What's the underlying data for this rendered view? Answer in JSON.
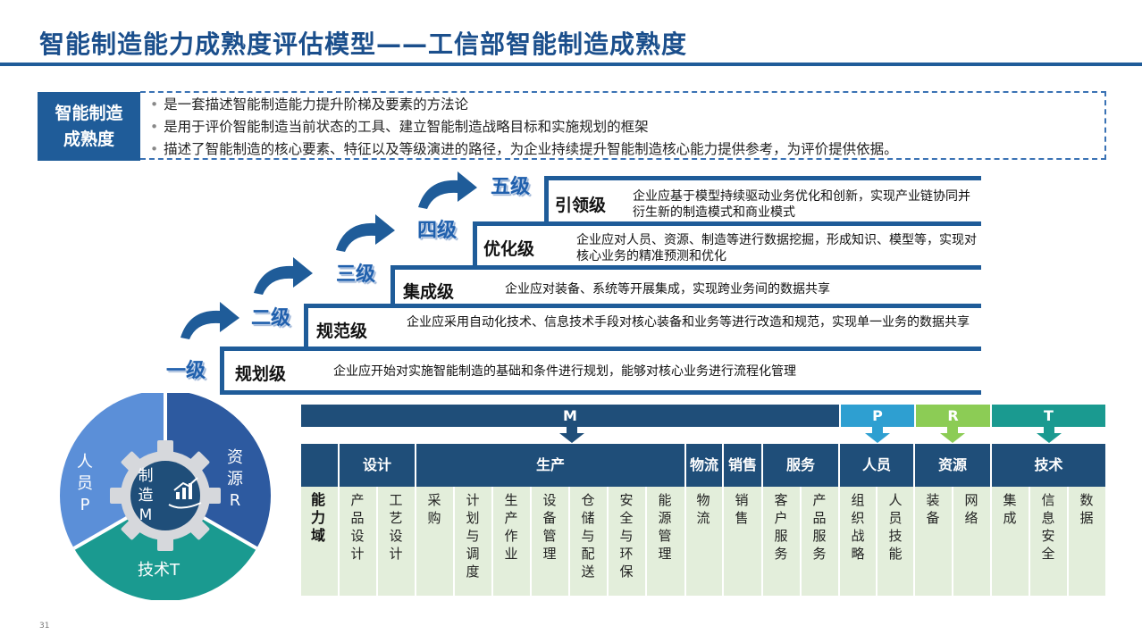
{
  "title": "智能制造能力成熟度评估模型——工信部智能制造成熟度",
  "definition": {
    "label_line1": "智能制造",
    "label_line2": "成熟度",
    "bullets": [
      "是一套描述智能制造能力提升阶梯及要素的方法论",
      "是用于评价智能制造当前状态的工具、建立智能制造战略目标和实施规划的框架",
      "描述了智能制造的核心要素、特征以及等级演进的路径，为企业持续提升智能制造核心能力提供参考，为评价提供依据。"
    ]
  },
  "levels": [
    {
      "step": "一级",
      "name": "规划级",
      "desc": "企业应开始对实施智能制造的基础和条件进行规划，能够对核心业务进行流程化管理"
    },
    {
      "step": "二级",
      "name": "规范级",
      "desc": "企业应采用自动化技术、信息技术手段对核心装备和业务等进行改造和规范，实现单一业务的数据共享"
    },
    {
      "step": "三级",
      "name": "集成级",
      "desc": "企业应对装备、系统等开展集成，实现跨业务间的数据共享"
    },
    {
      "step": "四级",
      "name": "优化级",
      "desc": "企业应对人员、资源、制造等进行数据挖掘，形成知识、模型等，实现对核心业务的精准预测和优化"
    },
    {
      "step": "五级",
      "name": "引领级",
      "desc": "企业应基于模型持续驱动业务优化和创新，实现产业链协同并衍生新的制造模式和商业模式"
    }
  ],
  "gear": {
    "people": [
      "人",
      "员",
      "P"
    ],
    "resources": [
      "资",
      "源",
      "R"
    ],
    "tech": "技术T",
    "center": [
      "制",
      "造",
      "M"
    ]
  },
  "framework": {
    "bars": {
      "m": "M",
      "p": "P",
      "r": "R",
      "t": "T"
    },
    "headers": [
      "设计",
      "生产",
      "物流",
      "销售",
      "服务",
      "人员",
      "资源",
      "技术"
    ],
    "row_label": "能力域",
    "domains": [
      "产品设计",
      "工艺设计",
      "采购",
      "计划与调度",
      "生产作业",
      "设备管理",
      "仓储与配送",
      "安全与环保",
      "能源管理",
      "物流",
      "销售",
      "客户服务",
      "产品服务",
      "组织战略",
      "人员技能",
      "装备",
      "网络",
      "集成",
      "信息安全",
      "数据"
    ]
  },
  "colors": {
    "primary": "#1f5c99",
    "dark_band": "#1f4e79",
    "p": "#2e9fd1",
    "r": "#8ccc55",
    "t": "#1a9a90",
    "light_green": "#e3eedb"
  },
  "page_number": "31"
}
